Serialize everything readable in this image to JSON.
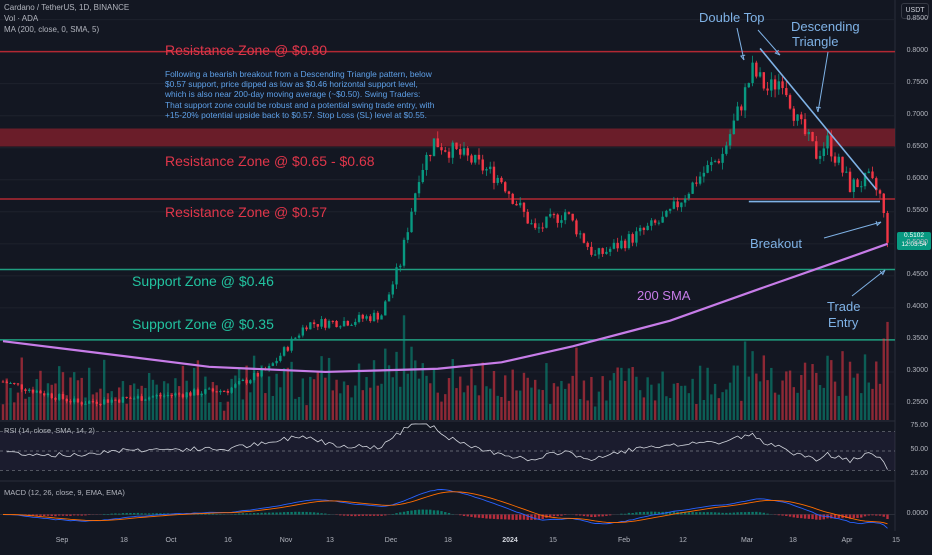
{
  "header": {
    "symbol_line": "Cardano / TetherUS, 1D, BINANCE",
    "volume_line": "Vol · ADA",
    "ma_line": "MA (200, close, 0, SMA, 5)",
    "currency_button": "USDT"
  },
  "panes": {
    "rsi_label": "RSI (14, close, SMA, 14, 2)",
    "macd_label": "MACD (12, 26, close, 9, EMA, EMA)"
  },
  "annotations": {
    "resistance_080": "Resistance Zone @ $0.80",
    "resistance_065": "Resistance Zone @ $0.65 - $0.68",
    "resistance_057": "Resistance Zone @ $0.57",
    "support_046": "Support Zone @ $0.46",
    "support_035": "Support Zone @ $0.35",
    "double_top": "Double Top",
    "descending_triangle_1": "Descending",
    "descending_triangle_2": "Triangle",
    "breakout": "Breakout",
    "sma_label": "200 SMA",
    "trade_entry_1": "Trade",
    "trade_entry_2": "Entry",
    "note": "Following a bearish breakout from a Descending Triangle pattern, below $0.57 support, price dipped as low as $0.46 horizontal support level, which is also near 200-day moving average (~$0.50). Swing Traders: That support zone could be robust and a potential swing trade entry, with +15-20% potential upside back to $0.57. Stop Loss (SL) level at $0.55."
  },
  "price_tag": {
    "price": "0.5102",
    "countdown": "12:03:54"
  },
  "colors": {
    "up": "#089981",
    "down": "#f23645",
    "sma": "#c77ce8",
    "zone_red": "#e0364a",
    "zone_green": "#22c3a0",
    "blue_note": "#5ea0e8",
    "rsi": "#d1d4dc",
    "macd": "#2962ff",
    "signal": "#ff6d00"
  },
  "chart_data": {
    "type": "candlestick",
    "price_axis": {
      "ticks": [
        "0.8500",
        "0.8000",
        "0.7500",
        "0.7000",
        "0.6500",
        "0.6000",
        "0.5500",
        "0.5000",
        "0.4500",
        "0.4000",
        "0.3500",
        "0.3000",
        "0.2500"
      ],
      "ylim": [
        0.225,
        0.865
      ]
    },
    "time_axis": {
      "ticks": [
        "Sep",
        "18",
        "Oct",
        "16",
        "Nov",
        "13",
        "Dec",
        "18",
        "2024",
        "15",
        "Feb",
        "12",
        "Mar",
        "18",
        "Apr",
        "15"
      ],
      "range": [
        "2023-08-21",
        "2024-04-15"
      ]
    },
    "zones": [
      {
        "label": "Resistance Zone @ $0.80",
        "low": 0.8,
        "high": 0.8
      },
      {
        "label": "Resistance Zone @ $0.65 - $0.68",
        "low": 0.652,
        "high": 0.68
      },
      {
        "label": "Resistance Zone @ $0.57",
        "low": 0.57,
        "high": 0.57
      },
      {
        "label": "Support Zone @ $0.46",
        "low": 0.46,
        "high": 0.46
      },
      {
        "label": "Support Zone @ $0.35",
        "low": 0.35,
        "high": 0.35
      }
    ],
    "anchors": [
      [
        "2023-08-21",
        0.285
      ],
      [
        "2023-09-10",
        0.252
      ],
      [
        "2023-10-01",
        0.262
      ],
      [
        "2023-10-20",
        0.272
      ],
      [
        "2023-10-31",
        0.305
      ],
      [
        "2023-11-10",
        0.375
      ],
      [
        "2023-11-22",
        0.38
      ],
      [
        "2023-11-30",
        0.39
      ],
      [
        "2023-12-05",
        0.47
      ],
      [
        "2023-12-10",
        0.61
      ],
      [
        "2023-12-14",
        0.66
      ],
      [
        "2023-12-24",
        0.63
      ],
      [
        "2024-01-01",
        0.6
      ],
      [
        "2024-01-10",
        0.52
      ],
      [
        "2024-01-18",
        0.55
      ],
      [
        "2024-01-26",
        0.48
      ],
      [
        "2024-02-05",
        0.51
      ],
      [
        "2024-02-14",
        0.54
      ],
      [
        "2024-02-22",
        0.6
      ],
      [
        "2024-02-29",
        0.64
      ],
      [
        "2024-03-05",
        0.72
      ],
      [
        "2024-03-08",
        0.77
      ],
      [
        "2024-03-12",
        0.74
      ],
      [
        "2024-03-16",
        0.76
      ],
      [
        "2024-03-20",
        0.69
      ],
      [
        "2024-03-25",
        0.64
      ],
      [
        "2024-03-28",
        0.66
      ],
      [
        "2024-04-03",
        0.59
      ],
      [
        "2024-04-08",
        0.6
      ],
      [
        "2024-04-11",
        0.575
      ],
      [
        "2024-04-13",
        0.51
      ]
    ],
    "sma200": [
      [
        "2023-08-21",
        0.348
      ],
      [
        "2023-09-15",
        0.33
      ],
      [
        "2023-10-15",
        0.308
      ],
      [
        "2023-11-15",
        0.3
      ],
      [
        "2023-12-15",
        0.305
      ],
      [
        "2024-01-01",
        0.315
      ],
      [
        "2024-01-20",
        0.34
      ],
      [
        "2024-02-15",
        0.38
      ],
      [
        "2024-03-10",
        0.43
      ],
      [
        "2024-04-01",
        0.475
      ],
      [
        "2024-04-13",
        0.5
      ]
    ],
    "rsi_axis": {
      "ticks": [
        "75.00",
        "50.00",
        "25.00"
      ],
      "band": [
        30,
        70
      ]
    },
    "macd_axis": {
      "ticks": [
        "0.0000"
      ]
    }
  }
}
